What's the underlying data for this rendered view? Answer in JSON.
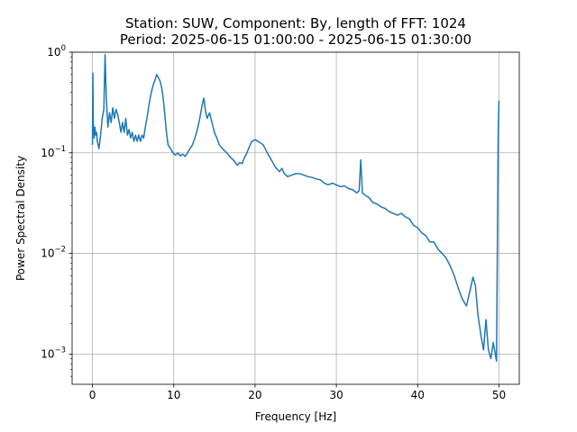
{
  "chart_data": {
    "type": "line",
    "title_line1": "Station: SUW, Component: By, length of FFT: 1024",
    "title_line2": "Period: 2025-06-15 01:00:00 - 2025-06-15 01:30:00",
    "xlabel": "Frequency [Hz]",
    "ylabel": "Power Spectral Density",
    "xlim": [
      -2.5,
      52.5
    ],
    "ylim": [
      0.0005,
      1
    ],
    "yscale": "log",
    "grid": true,
    "x_ticks": [
      0,
      10,
      20,
      30,
      40,
      50
    ],
    "x_tick_labels": [
      "0",
      "10",
      "20",
      "30",
      "40",
      "50"
    ],
    "y_ticks": [
      {
        "value": 0.001,
        "base": "10",
        "exp": "−3"
      },
      {
        "value": 0.01,
        "base": "10",
        "exp": "−2"
      },
      {
        "value": 0.1,
        "base": "10",
        "exp": "−1"
      },
      {
        "value": 1,
        "base": "10",
        "exp": "0"
      }
    ],
    "series": [
      {
        "color": "#1f77b4",
        "points": [
          [
            0.0,
            0.12
          ],
          [
            0.05,
            0.62
          ],
          [
            0.1,
            0.2
          ],
          [
            0.2,
            0.14
          ],
          [
            0.3,
            0.18
          ],
          [
            0.4,
            0.15
          ],
          [
            0.5,
            0.16
          ],
          [
            0.6,
            0.13
          ],
          [
            0.8,
            0.11
          ],
          [
            1.0,
            0.15
          ],
          [
            1.2,
            0.22
          ],
          [
            1.4,
            0.27
          ],
          [
            1.55,
            0.95
          ],
          [
            1.7,
            0.35
          ],
          [
            1.9,
            0.18
          ],
          [
            2.1,
            0.25
          ],
          [
            2.3,
            0.2
          ],
          [
            2.5,
            0.28
          ],
          [
            2.7,
            0.22
          ],
          [
            2.9,
            0.27
          ],
          [
            3.1,
            0.24
          ],
          [
            3.3,
            0.2
          ],
          [
            3.5,
            0.16
          ],
          [
            3.7,
            0.2
          ],
          [
            3.9,
            0.16
          ],
          [
            4.1,
            0.22
          ],
          [
            4.3,
            0.15
          ],
          [
            4.5,
            0.17
          ],
          [
            4.7,
            0.14
          ],
          [
            4.9,
            0.16
          ],
          [
            5.1,
            0.13
          ],
          [
            5.3,
            0.15
          ],
          [
            5.5,
            0.13
          ],
          [
            5.7,
            0.15
          ],
          [
            5.9,
            0.13
          ],
          [
            6.1,
            0.15
          ],
          [
            6.3,
            0.14
          ],
          [
            6.5,
            0.18
          ],
          [
            6.7,
            0.22
          ],
          [
            6.9,
            0.28
          ],
          [
            7.1,
            0.35
          ],
          [
            7.3,
            0.42
          ],
          [
            7.5,
            0.48
          ],
          [
            7.7,
            0.53
          ],
          [
            7.9,
            0.6
          ],
          [
            8.1,
            0.56
          ],
          [
            8.3,
            0.52
          ],
          [
            8.5,
            0.45
          ],
          [
            8.7,
            0.35
          ],
          [
            8.9,
            0.24
          ],
          [
            9.1,
            0.16
          ],
          [
            9.3,
            0.12
          ],
          [
            9.6,
            0.11
          ],
          [
            9.9,
            0.1
          ],
          [
            10.2,
            0.095
          ],
          [
            10.5,
            0.1
          ],
          [
            10.8,
            0.093
          ],
          [
            11.1,
            0.097
          ],
          [
            11.4,
            0.092
          ],
          [
            11.7,
            0.1
          ],
          [
            12.0,
            0.11
          ],
          [
            12.3,
            0.12
          ],
          [
            12.6,
            0.14
          ],
          [
            12.9,
            0.17
          ],
          [
            13.2,
            0.22
          ],
          [
            13.5,
            0.3
          ],
          [
            13.7,
            0.35
          ],
          [
            13.9,
            0.26
          ],
          [
            14.1,
            0.22
          ],
          [
            14.4,
            0.25
          ],
          [
            14.7,
            0.2
          ],
          [
            15.0,
            0.16
          ],
          [
            15.3,
            0.14
          ],
          [
            15.6,
            0.12
          ],
          [
            16.0,
            0.11
          ],
          [
            16.5,
            0.1
          ],
          [
            17.0,
            0.09
          ],
          [
            17.5,
            0.082
          ],
          [
            17.8,
            0.075
          ],
          [
            18.1,
            0.08
          ],
          [
            18.4,
            0.078
          ],
          [
            18.7,
            0.09
          ],
          [
            19.0,
            0.1
          ],
          [
            19.3,
            0.115
          ],
          [
            19.6,
            0.13
          ],
          [
            20.0,
            0.135
          ],
          [
            20.5,
            0.128
          ],
          [
            21.0,
            0.12
          ],
          [
            21.5,
            0.1
          ],
          [
            22.0,
            0.085
          ],
          [
            22.5,
            0.072
          ],
          [
            23.0,
            0.065
          ],
          [
            23.3,
            0.07
          ],
          [
            23.6,
            0.062
          ],
          [
            24.0,
            0.058
          ],
          [
            24.5,
            0.06
          ],
          [
            25.0,
            0.062
          ],
          [
            25.5,
            0.062
          ],
          [
            26.0,
            0.06
          ],
          [
            26.5,
            0.058
          ],
          [
            27.0,
            0.057
          ],
          [
            27.5,
            0.055
          ],
          [
            28.0,
            0.054
          ],
          [
            28.5,
            0.05
          ],
          [
            29.0,
            0.048
          ],
          [
            29.5,
            0.05
          ],
          [
            30.0,
            0.048
          ],
          [
            30.5,
            0.046
          ],
          [
            31.0,
            0.047
          ],
          [
            31.5,
            0.044
          ],
          [
            32.0,
            0.043
          ],
          [
            32.5,
            0.04
          ],
          [
            32.8,
            0.042
          ],
          [
            33.0,
            0.085
          ],
          [
            33.2,
            0.04
          ],
          [
            33.5,
            0.038
          ],
          [
            34.0,
            0.036
          ],
          [
            34.5,
            0.032
          ],
          [
            35.0,
            0.031
          ],
          [
            35.5,
            0.029
          ],
          [
            36.0,
            0.028
          ],
          [
            36.5,
            0.026
          ],
          [
            37.0,
            0.025
          ],
          [
            37.5,
            0.024
          ],
          [
            38.0,
            0.025
          ],
          [
            38.5,
            0.023
          ],
          [
            39.0,
            0.022
          ],
          [
            39.5,
            0.019
          ],
          [
            40.0,
            0.018
          ],
          [
            40.5,
            0.016
          ],
          [
            41.0,
            0.015
          ],
          [
            41.5,
            0.013
          ],
          [
            42.0,
            0.013
          ],
          [
            42.5,
            0.011
          ],
          [
            43.0,
            0.01
          ],
          [
            43.5,
            0.009
          ],
          [
            44.0,
            0.0075
          ],
          [
            44.5,
            0.006
          ],
          [
            45.0,
            0.0045
          ],
          [
            45.5,
            0.0035
          ],
          [
            46.0,
            0.003
          ],
          [
            46.5,
            0.0045
          ],
          [
            46.8,
            0.0058
          ],
          [
            47.1,
            0.0048
          ],
          [
            47.4,
            0.0025
          ],
          [
            47.8,
            0.0015
          ],
          [
            48.1,
            0.0011
          ],
          [
            48.4,
            0.0022
          ],
          [
            48.7,
            0.0011
          ],
          [
            49.0,
            0.0009
          ],
          [
            49.3,
            0.0013
          ],
          [
            49.7,
            0.00085
          ],
          [
            49.9,
            0.15
          ],
          [
            50.0,
            0.33
          ]
        ]
      }
    ]
  }
}
